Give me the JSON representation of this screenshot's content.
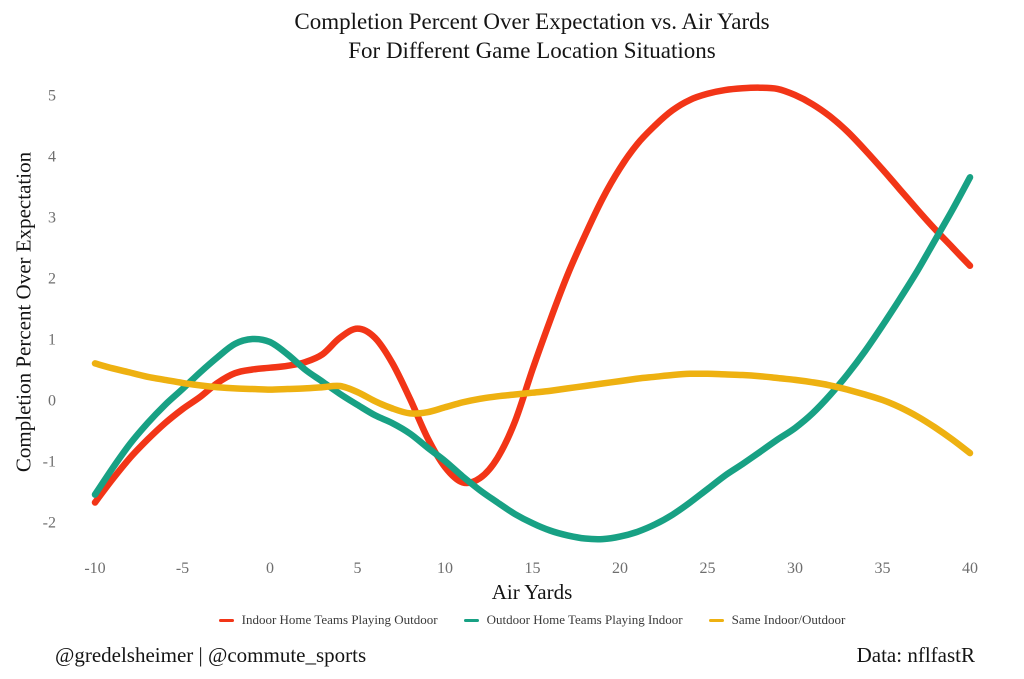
{
  "title": {
    "line1": "Completion Percent Over Expectation vs. Air Yards",
    "line2": "For Different Game Location Situations"
  },
  "axes": {
    "x_label": "Air Yards",
    "y_label": "Completion Percent Over Expectation",
    "x_ticks": [
      -10,
      -5,
      0,
      5,
      10,
      15,
      20,
      25,
      30,
      35,
      40
    ],
    "y_ticks": [
      5,
      4,
      3,
      2,
      1,
      0,
      -1,
      -2
    ],
    "tick_color": "#6e6e6e"
  },
  "legend": {
    "items": [
      {
        "label": "Indoor Home Teams Playing Outdoor",
        "color": "#f23517"
      },
      {
        "label": "Outdoor Home Teams Playing Indoor",
        "color": "#18a184"
      },
      {
        "label": "Same Indoor/Outdoor",
        "color": "#eeb111"
      }
    ]
  },
  "footer": {
    "left": "@gredelsheimer | @commute_sports",
    "right": "Data: nflfastR"
  },
  "chart_data": {
    "type": "line",
    "title": "Completion Percent Over Expectation vs. Air Yards For Different Game Location Situations",
    "xlabel": "Air Yards",
    "ylabel": "Completion Percent Over Expectation",
    "xlim": [
      -10,
      40
    ],
    "ylim": [
      -2.4,
      5.2
    ],
    "grid": false,
    "legend_position": "bottom",
    "x": [
      -10,
      -9,
      -8,
      -7,
      -6,
      -5,
      -4,
      -3,
      -2,
      -1,
      0,
      1,
      2,
      3,
      4,
      5,
      6,
      7,
      8,
      9,
      10,
      11,
      12,
      13,
      14,
      15,
      16,
      17,
      18,
      19,
      20,
      21,
      22,
      23,
      24,
      25,
      26,
      27,
      28,
      29,
      30,
      31,
      32,
      33,
      34,
      35,
      36,
      37,
      38,
      39,
      40
    ],
    "series": [
      {
        "name": "Indoor Home Teams Playing Outdoor",
        "color": "#f23517",
        "values": [
          -1.68,
          -1.3,
          -0.95,
          -0.65,
          -0.38,
          -0.15,
          0.05,
          0.28,
          0.44,
          0.5,
          0.53,
          0.56,
          0.62,
          0.75,
          1.02,
          1.17,
          1.02,
          0.6,
          0.02,
          -0.62,
          -1.1,
          -1.35,
          -1.28,
          -0.95,
          -0.35,
          0.5,
          1.3,
          2.05,
          2.7,
          3.3,
          3.8,
          4.2,
          4.5,
          4.75,
          4.92,
          5.02,
          5.08,
          5.11,
          5.12,
          5.1,
          5.0,
          4.85,
          4.65,
          4.4,
          4.1,
          3.78,
          3.45,
          3.12,
          2.8,
          2.5,
          2.2
        ]
      },
      {
        "name": "Outdoor Home Teams Playing Indoor",
        "color": "#18a184",
        "values": [
          -1.55,
          -1.12,
          -0.72,
          -0.38,
          -0.08,
          0.18,
          0.45,
          0.7,
          0.92,
          1.0,
          0.95,
          0.75,
          0.5,
          0.3,
          0.1,
          -0.08,
          -0.25,
          -0.38,
          -0.55,
          -0.78,
          -1.0,
          -1.25,
          -1.48,
          -1.68,
          -1.87,
          -2.02,
          -2.14,
          -2.22,
          -2.27,
          -2.28,
          -2.24,
          -2.16,
          -2.04,
          -1.88,
          -1.68,
          -1.46,
          -1.24,
          -1.05,
          -0.85,
          -0.65,
          -0.46,
          -0.22,
          0.08,
          0.42,
          0.8,
          1.22,
          1.66,
          2.12,
          2.62,
          3.12,
          3.65
        ]
      },
      {
        "name": "Same Indoor/Outdoor",
        "color": "#eeb111",
        "values": [
          0.6,
          0.52,
          0.45,
          0.38,
          0.33,
          0.28,
          0.24,
          0.21,
          0.19,
          0.18,
          0.17,
          0.18,
          0.19,
          0.21,
          0.23,
          0.13,
          -0.02,
          -0.14,
          -0.22,
          -0.2,
          -0.12,
          -0.04,
          0.02,
          0.06,
          0.09,
          0.12,
          0.15,
          0.19,
          0.23,
          0.27,
          0.31,
          0.35,
          0.38,
          0.41,
          0.43,
          0.43,
          0.42,
          0.41,
          0.39,
          0.36,
          0.33,
          0.29,
          0.24,
          0.17,
          0.09,
          0.0,
          -0.12,
          -0.27,
          -0.45,
          -0.65,
          -0.87
        ]
      }
    ]
  }
}
